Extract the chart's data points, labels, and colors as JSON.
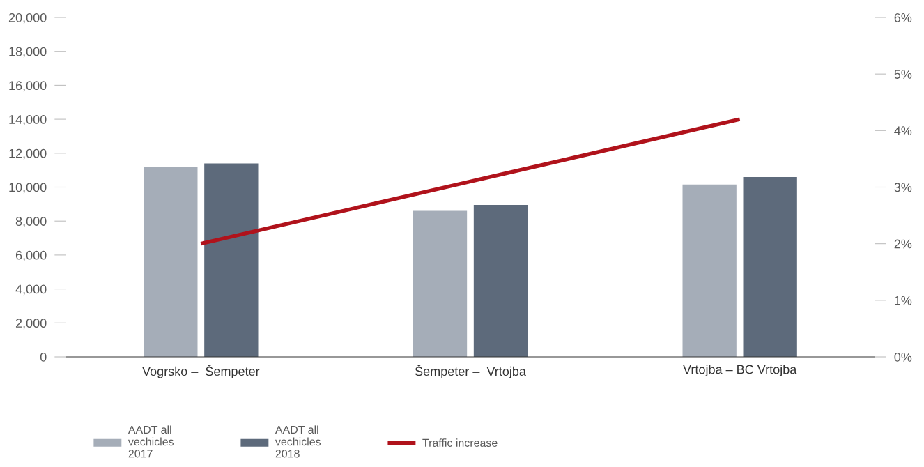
{
  "chart_data": {
    "type": "bar",
    "categories": [
      "Vogrsko –  Šempeter",
      "Šempeter –  Vrtojba",
      "Vrtojba – BC Vrtojba"
    ],
    "series": [
      {
        "name": "AADT all\nvechicles\n2017",
        "color": "#a5adb8",
        "values": [
          11200,
          8600,
          10150
        ]
      },
      {
        "name": "AADT all\nvechicles\n2018",
        "color": "#5d6a7b",
        "values": [
          11400,
          8950,
          10600
        ]
      },
      {
        "name": "Traffic increase",
        "type": "line",
        "axis": "y2",
        "color": "#b0121b",
        "values": [
          2.0,
          3.1,
          4.2
        ],
        "marker": "none",
        "line_style": "solid"
      }
    ],
    "ylim": [
      0,
      20000
    ],
    "yticks": [
      {
        "value": 0,
        "label": "0"
      },
      {
        "value": 2000,
        "label": "2,000"
      },
      {
        "value": 4000,
        "label": "4,000"
      },
      {
        "value": 6000,
        "label": "6,000"
      },
      {
        "value": 8000,
        "label": "8,000"
      },
      {
        "value": 10000,
        "label": "10,000"
      },
      {
        "value": 12000,
        "label": "12,000"
      },
      {
        "value": 14000,
        "label": "14,000"
      },
      {
        "value": 16000,
        "label": "16,000"
      },
      {
        "value": 18000,
        "label": "18,000"
      },
      {
        "value": 20000,
        "label": "20,000"
      }
    ],
    "y2lim": [
      0,
      6
    ],
    "y2ticks": [
      {
        "value": 0,
        "label": "0%"
      },
      {
        "value": 1,
        "label": "1%"
      },
      {
        "value": 2,
        "label": "2%"
      },
      {
        "value": 3,
        "label": "3%"
      },
      {
        "value": 4,
        "label": "4%"
      },
      {
        "value": 5,
        "label": "5%"
      },
      {
        "value": 6,
        "label": "6%"
      }
    ],
    "grid": false,
    "legend": "bottom left"
  }
}
